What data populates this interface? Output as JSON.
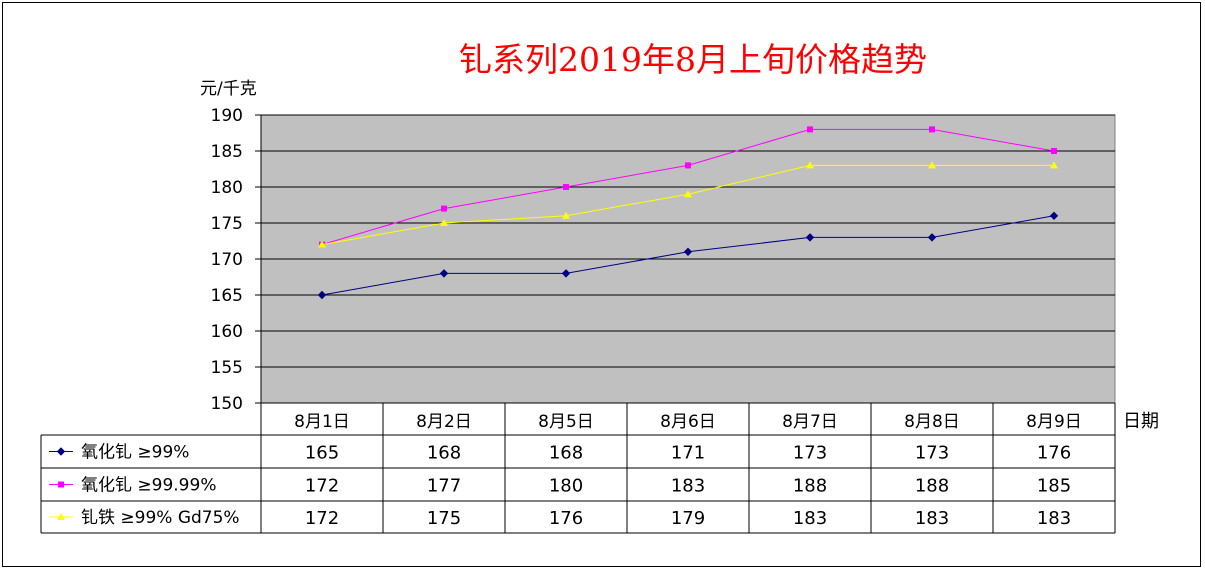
{
  "chart_data": {
    "type": "line",
    "title": "钆系列2019年8月上旬价格趋势",
    "ylabel": "元/千克",
    "xlabel": "日期",
    "ylim": [
      150,
      190
    ],
    "yticks": [
      150,
      155,
      160,
      165,
      170,
      175,
      180,
      185,
      190
    ],
    "grid": true,
    "legend": "data-table-below",
    "categories": [
      "8月1日",
      "8月2日",
      "8月5日",
      "8月6日",
      "8月7日",
      "8月8日",
      "8月9日"
    ],
    "series": [
      {
        "name": "氧化钆 ≥99%",
        "color": "#000080",
        "marker": "diamond",
        "values": [
          165,
          168,
          168,
          171,
          173,
          173,
          176
        ]
      },
      {
        "name": "氧化钆 ≥99.99%",
        "color": "#ff00ff",
        "marker": "square",
        "values": [
          172,
          177,
          180,
          183,
          188,
          188,
          185
        ]
      },
      {
        "name": "钆铁 ≥99% Gd75%",
        "color": "#ffff00",
        "marker": "triangle",
        "values": [
          172,
          175,
          176,
          179,
          183,
          183,
          183
        ]
      }
    ],
    "colors": {
      "title": "#ff0000",
      "plot_background": "#c0c0c0",
      "grid": "#000000"
    }
  }
}
